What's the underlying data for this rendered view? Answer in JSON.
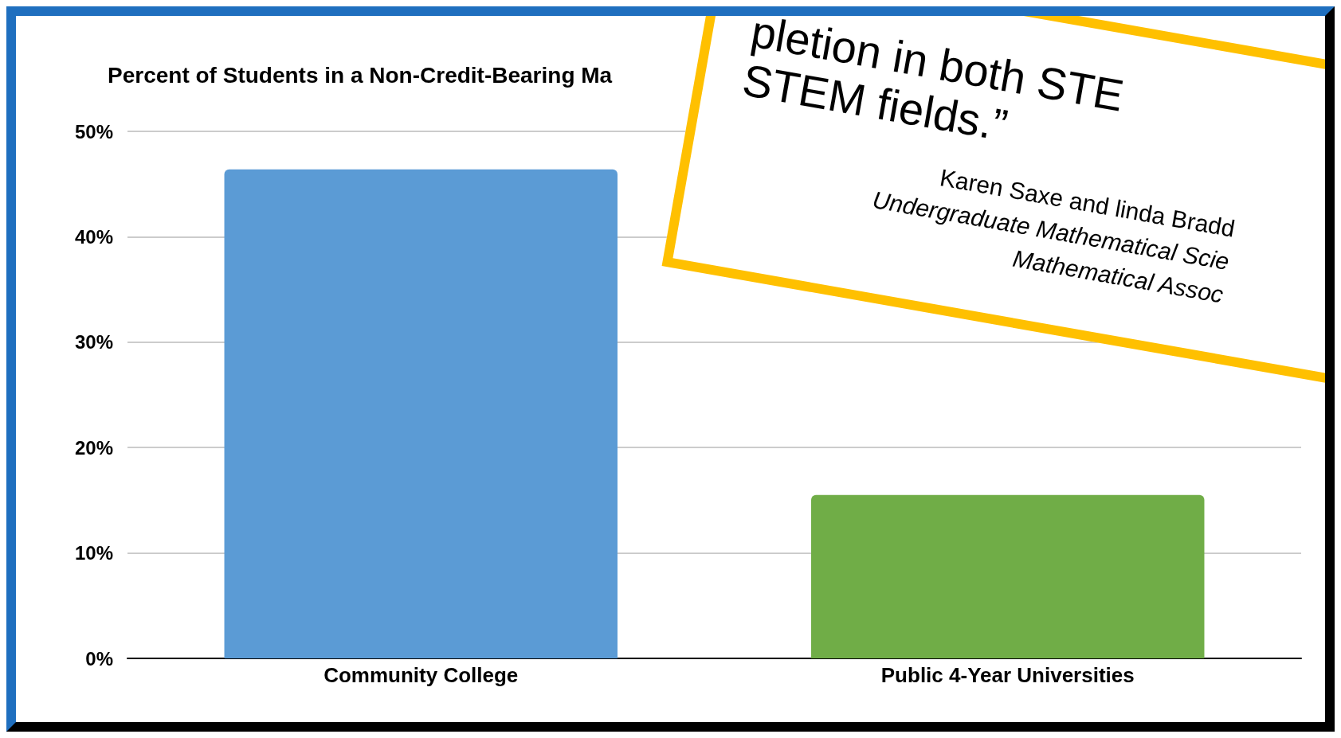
{
  "chart_data": {
    "type": "bar",
    "title": "Percent of Students in a Non-Credit-Bearing Ma",
    "categories": [
      "Community College",
      "Public 4-Year Universities"
    ],
    "values": [
      46.4,
      15.5
    ],
    "colors": [
      "#5b9bd5",
      "#70ad47"
    ],
    "ylim": [
      0,
      50
    ],
    "yticks": [
      {
        "value": 0,
        "label": "0%"
      },
      {
        "value": 10,
        "label": "10%"
      },
      {
        "value": 20,
        "label": "20%"
      },
      {
        "value": 30,
        "label": "30%"
      },
      {
        "value": 40,
        "label": "40%"
      },
      {
        "value": 50,
        "label": "50%"
      }
    ],
    "grid": "y",
    "annotations": [
      "pletion in both STE",
      "STEM fields.”",
      "Karen Saxe and linda Bradd",
      "Undergraduate Mathematical Scie",
      "Mathematical Assoc"
    ]
  }
}
